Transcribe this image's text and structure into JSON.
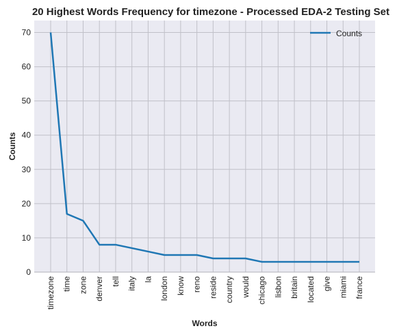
{
  "chart_data": {
    "type": "line",
    "title": "20 Highest Words Frequency for timezone - Processed EDA-2 Testing Set",
    "xlabel": "Words",
    "ylabel": "Counts",
    "categories": [
      "timezone",
      "time",
      "zone",
      "denver",
      "tell",
      "italy",
      "la",
      "london",
      "know",
      "reno",
      "reside",
      "country",
      "would",
      "chicago",
      "lisbon",
      "britain",
      "located",
      "give",
      "miami",
      "france"
    ],
    "series": [
      {
        "name": "Counts",
        "values": [
          70,
          17,
          15,
          8,
          8,
          7,
          6,
          5,
          5,
          5,
          4,
          4,
          4,
          3,
          3,
          3,
          3,
          3,
          3,
          3
        ]
      }
    ],
    "ylim": [
      0,
      73.5
    ],
    "yticks": [
      0,
      10,
      20,
      30,
      40,
      50,
      60,
      70
    ],
    "grid": true,
    "legend_position": "top-right",
    "colors": {
      "line": "#1f77b4",
      "plot_background": "#eaeaf2",
      "grid": "#c0c0c8"
    }
  }
}
